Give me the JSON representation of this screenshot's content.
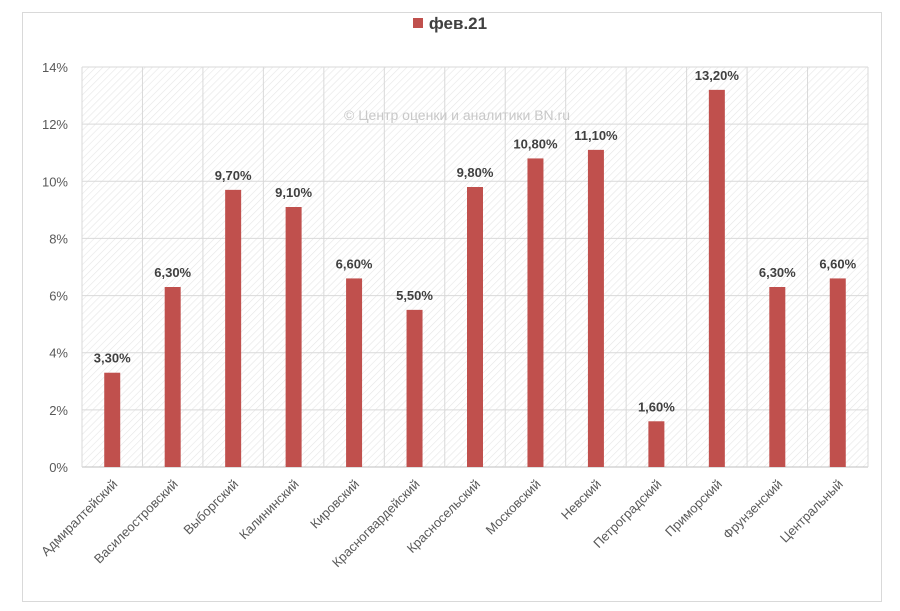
{
  "chart_data": {
    "type": "bar",
    "legend": "фев.21",
    "watermark": "© Центр оценки и аналитики BN.ru",
    "categories": [
      "Адмиралтейский",
      "Василеостровский",
      "Выборгский",
      "Калининский",
      "Кировский",
      "Красногвардейский",
      "Красносельский",
      "Московский",
      "Невский",
      "Петроградский",
      "Приморский",
      "Фрунзенский",
      "Центральный"
    ],
    "series": [
      {
        "name": "фев.21",
        "values": [
          3.3,
          6.3,
          9.7,
          9.1,
          6.6,
          5.5,
          9.8,
          10.8,
          11.1,
          1.6,
          13.2,
          6.3,
          6.6
        ],
        "labels": [
          "3,30%",
          "6,30%",
          "9,70%",
          "9,10%",
          "6,60%",
          "5,50%",
          "9,80%",
          "10,80%",
          "11,10%",
          "1,60%",
          "13,20%",
          "6,30%",
          "6,60%"
        ]
      }
    ],
    "yticks": [
      "0%",
      "2%",
      "4%",
      "6%",
      "8%",
      "10%",
      "12%",
      "14%"
    ],
    "ylim": [
      0,
      14
    ],
    "color": "#c0504d",
    "grid": true,
    "legend_position": "top-center"
  }
}
